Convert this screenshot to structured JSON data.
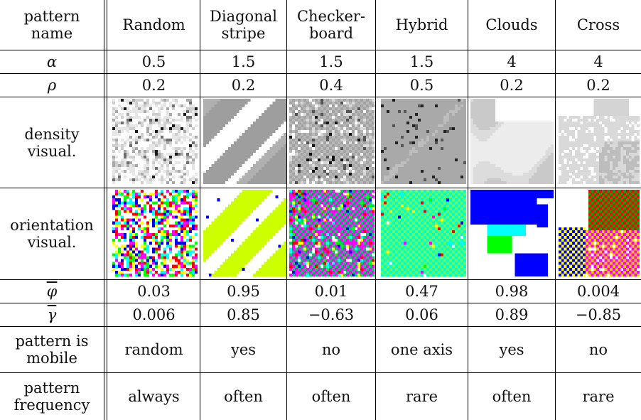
{
  "header": {
    "row_label_line1": "pattern",
    "row_label_line2": "name",
    "patterns": [
      {
        "line1": "Random",
        "line2": ""
      },
      {
        "line1": "Diagonal",
        "line2": "stripe"
      },
      {
        "line1": "Checker-",
        "line2": "board"
      },
      {
        "line1": "Hybrid",
        "line2": ""
      },
      {
        "line1": "Clouds",
        "line2": ""
      },
      {
        "line1": "Cross",
        "line2": ""
      }
    ]
  },
  "rows": {
    "alpha": {
      "label": "α",
      "values": [
        "0.5",
        "1.5",
        "1.5",
        "1.5",
        "4",
        "4"
      ]
    },
    "rho": {
      "label": "ρ",
      "values": [
        "0.2",
        "0.2",
        "0.4",
        "0.5",
        "0.2",
        "0.2"
      ]
    },
    "density": {
      "label_line1": "density",
      "label_line2": "visual."
    },
    "orientation": {
      "label_line1": "orientation",
      "label_line2": "visual."
    },
    "phi": {
      "label": "φ",
      "values": [
        "0.03",
        "0.95",
        "0.01",
        "0.47",
        "0.98",
        "0.004"
      ]
    },
    "gamma": {
      "label": "γ",
      "values": [
        "0.006",
        "0.85",
        "−0.63",
        "0.06",
        "0.89",
        "−0.85"
      ]
    },
    "mobile": {
      "label_line1": "pattern is",
      "label_line2": "mobile",
      "values": [
        "random",
        "yes",
        "no",
        "one axis",
        "yes",
        "no"
      ]
    },
    "frequency": {
      "label_line1": "pattern",
      "label_line2": "frequency",
      "values": [
        "always",
        "often",
        "often",
        "rare",
        "often",
        "rare"
      ]
    }
  },
  "colors": {
    "orientation_palette": [
      "#ff0000",
      "#ffff00",
      "#00ff00",
      "#00ffff",
      "#0000ff",
      "#ff00ff",
      "#ffffff",
      "#ccff00"
    ],
    "density_palette": [
      "#ffffff",
      "#e6e6e6",
      "#c8c8c8",
      "#aaaaaa",
      "#888888",
      "#555555",
      "#222222",
      "#000000"
    ]
  }
}
